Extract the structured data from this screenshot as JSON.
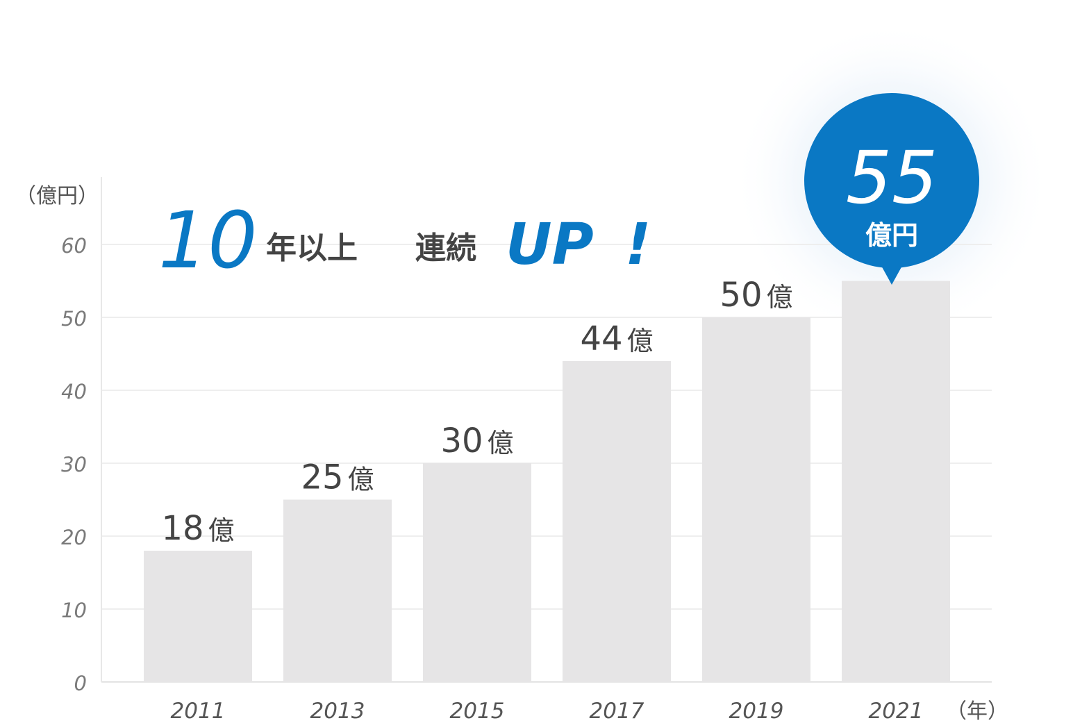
{
  "chart_data": {
    "type": "bar",
    "categories": [
      "2011",
      "2013",
      "2015",
      "2017",
      "2019",
      "2021"
    ],
    "values": [
      18,
      25,
      30,
      44,
      50,
      55
    ],
    "value_labels": [
      "18",
      "25",
      "30",
      "44",
      "50",
      ""
    ],
    "value_suffix": "億",
    "ylim": [
      0,
      60
    ],
    "yticks": [
      "0",
      "10",
      "20",
      "30",
      "40",
      "50",
      "60"
    ],
    "y_unit": "（億円）",
    "x_unit": "（年）",
    "grid": true,
    "bar_color": "#e6e5e6",
    "accent_color": "#0a78c4"
  },
  "headline": {
    "number": "10",
    "text1": "年以上",
    "text2": "連続",
    "emphasis": "UP",
    "exclaim": "!"
  },
  "badge": {
    "value": "55",
    "unit": "億円"
  }
}
